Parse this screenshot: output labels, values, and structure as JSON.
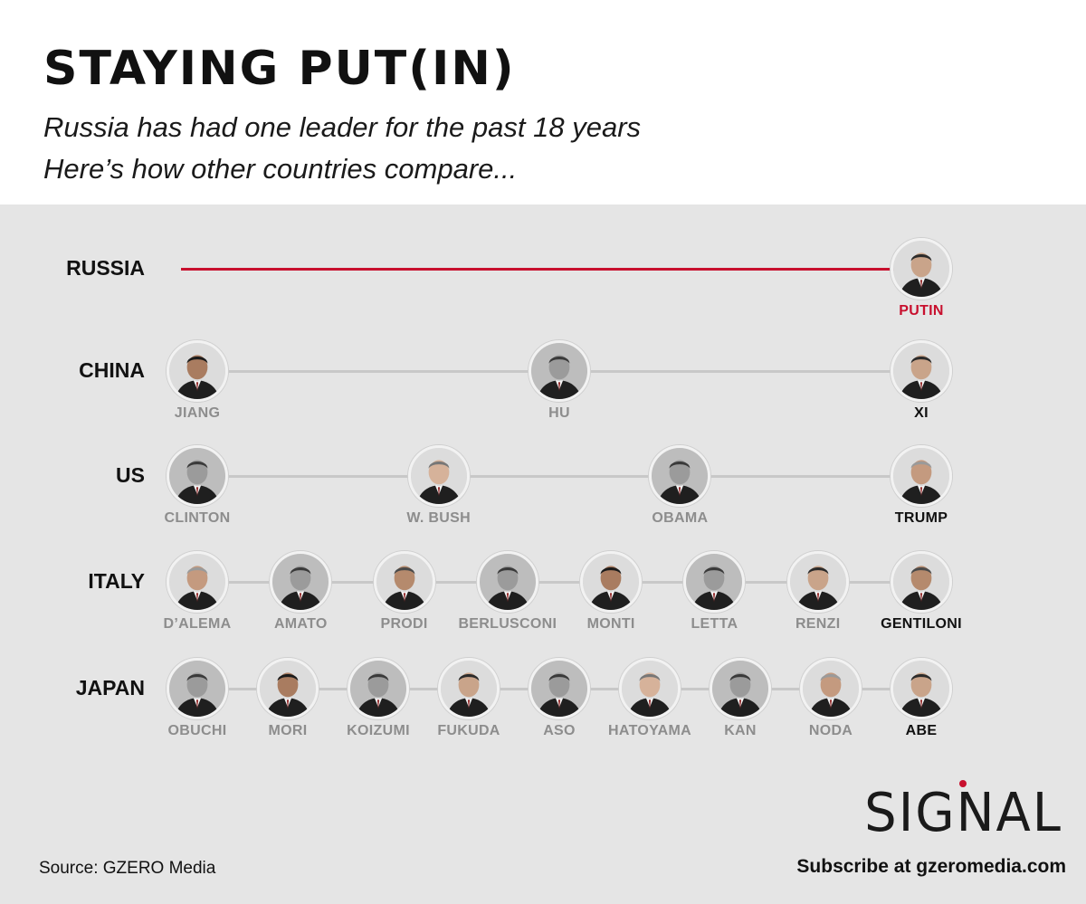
{
  "header": {
    "title": "STAYING PUT(IN)",
    "subtitle_line1": "Russia has had one leader for the past 18 years",
    "subtitle_line2": "Here’s how other countries compare..."
  },
  "colors": {
    "accent": "#c8102e",
    "track": "#c8c8c8",
    "former_name": "#8d8d8d",
    "current_name": "#111111",
    "background": "#e5e5e5"
  },
  "rows": [
    {
      "country": "RUSSIA",
      "highlight": true,
      "leaders": [
        {
          "name": "PUTIN",
          "current": true,
          "portrait": "putin-portrait-icon"
        }
      ]
    },
    {
      "country": "CHINA",
      "leaders": [
        {
          "name": "JIANG",
          "current": false,
          "portrait": "jiang-portrait-icon"
        },
        {
          "name": "HU",
          "current": false,
          "portrait": "hu-portrait-icon"
        },
        {
          "name": "XI",
          "current": true,
          "portrait": "xi-portrait-icon"
        }
      ]
    },
    {
      "country": "US",
      "leaders": [
        {
          "name": "CLINTON",
          "current": false,
          "portrait": "clinton-portrait-icon"
        },
        {
          "name": "W. BUSH",
          "current": false,
          "portrait": "w-bush-portrait-icon"
        },
        {
          "name": "OBAMA",
          "current": false,
          "portrait": "obama-portrait-icon"
        },
        {
          "name": "TRUMP",
          "current": true,
          "portrait": "trump-portrait-icon"
        }
      ]
    },
    {
      "country": "ITALY",
      "leaders": [
        {
          "name": "D’ALEMA",
          "current": false,
          "portrait": "dalema-portrait-icon"
        },
        {
          "name": "AMATO",
          "current": false,
          "portrait": "amato-portrait-icon"
        },
        {
          "name": "PRODI",
          "current": false,
          "portrait": "prodi-portrait-icon"
        },
        {
          "name": "BERLUSCONI",
          "current": false,
          "portrait": "berlusconi-portrait-icon"
        },
        {
          "name": "MONTI",
          "current": false,
          "portrait": "monti-portrait-icon"
        },
        {
          "name": "LETTA",
          "current": false,
          "portrait": "letta-portrait-icon"
        },
        {
          "name": "RENZI",
          "current": false,
          "portrait": "renzi-portrait-icon"
        },
        {
          "name": "GENTILONI",
          "current": true,
          "portrait": "gentiloni-portrait-icon"
        }
      ]
    },
    {
      "country": "JAPAN",
      "leaders": [
        {
          "name": "OBUCHI",
          "current": false,
          "portrait": "obuchi-portrait-icon"
        },
        {
          "name": "MORI",
          "current": false,
          "portrait": "mori-portrait-icon"
        },
        {
          "name": "KOIZUMI",
          "current": false,
          "portrait": "koizumi-portrait-icon"
        },
        {
          "name": "FUKUDA",
          "current": false,
          "portrait": "fukuda-portrait-icon"
        },
        {
          "name": "ASO",
          "current": false,
          "portrait": "aso-portrait-icon"
        },
        {
          "name": "HATOYAMA",
          "current": false,
          "portrait": "hatoyama-portrait-icon"
        },
        {
          "name": "KAN",
          "current": false,
          "portrait": "kan-portrait-icon"
        },
        {
          "name": "NODA",
          "current": false,
          "portrait": "noda-portrait-icon"
        },
        {
          "name": "ABE",
          "current": true,
          "portrait": "abe-portrait-icon"
        }
      ]
    }
  ],
  "footer": {
    "source": "Source: GZERO Media",
    "brand": "SIGNAL",
    "subscribe": "Subscribe at gzeromedia.com"
  }
}
